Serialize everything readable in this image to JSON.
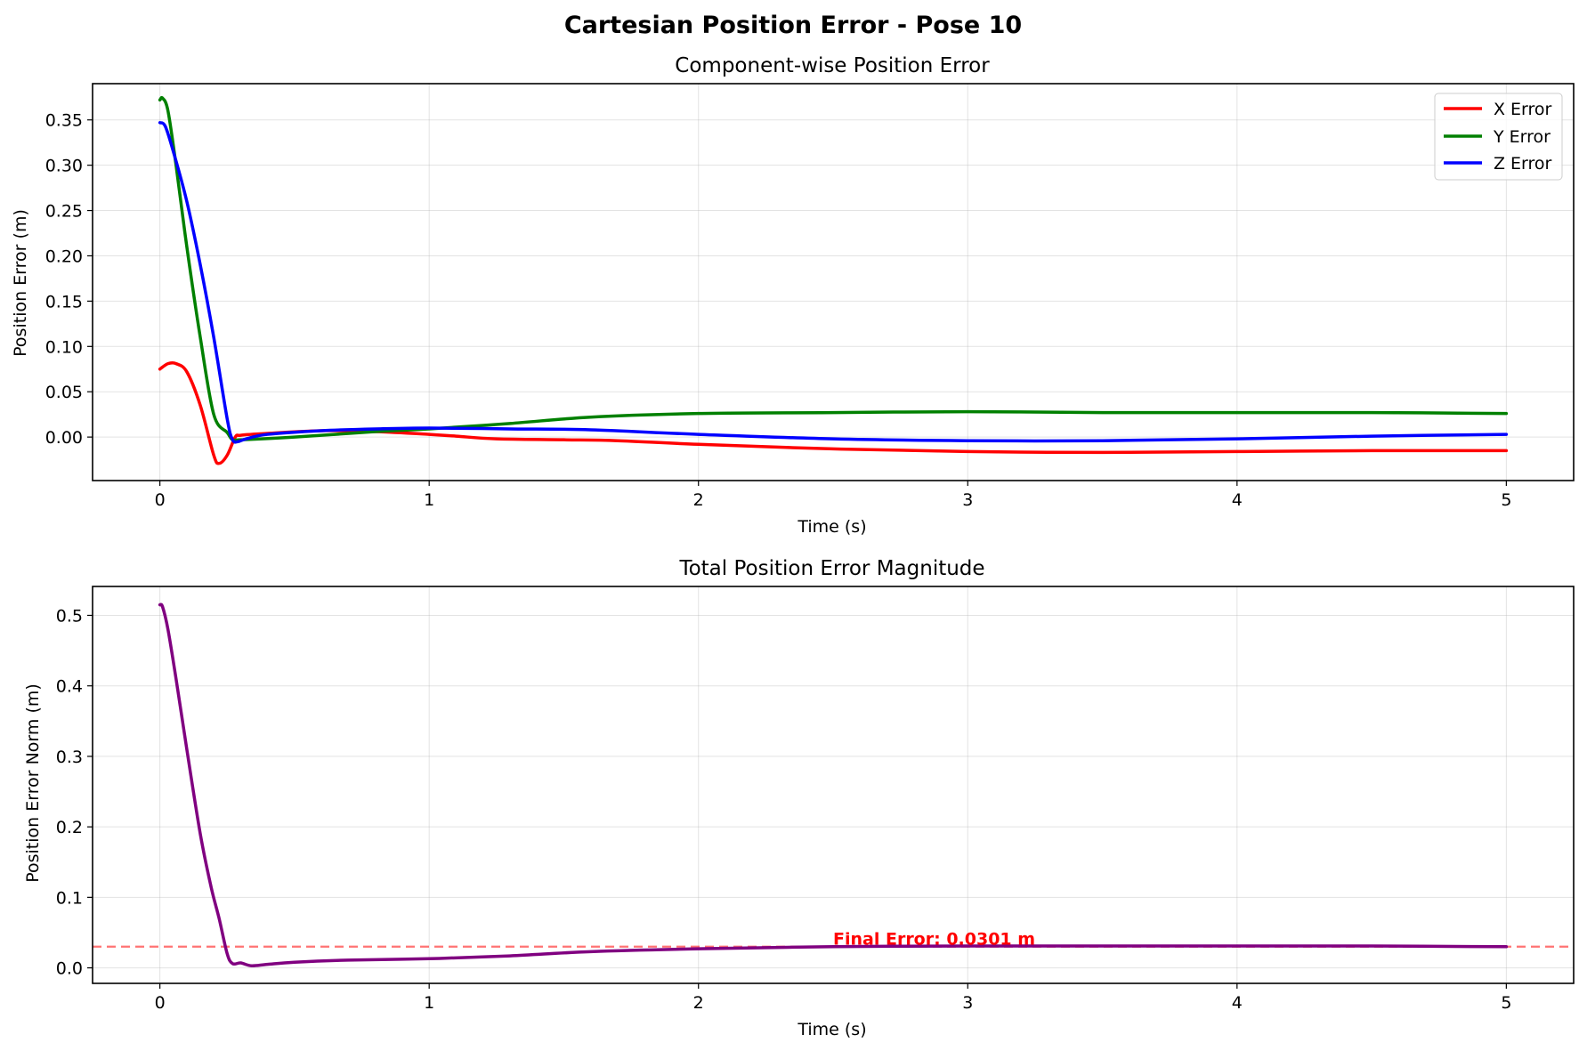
{
  "figure": {
    "suptitle": "Cartesian Position Error - Pose 10"
  },
  "chart_data": [
    {
      "type": "line",
      "title": "Component-wise Position Error",
      "xlabel": "Time (s)",
      "ylabel": "Position Error (m)",
      "xlim": [
        -0.25,
        5.25
      ],
      "ylim": [
        -0.048,
        0.39
      ],
      "xticks": [
        "0",
        "1",
        "2",
        "3",
        "4",
        "5"
      ],
      "yticks": [
        "0.00",
        "0.05",
        "0.10",
        "0.15",
        "0.20",
        "0.25",
        "0.30",
        "0.35"
      ],
      "grid": true,
      "legend_position": "top-right",
      "series": [
        {
          "name": "X Error",
          "color": "#ff0000",
          "x": [
            0,
            0.03,
            0.06,
            0.1,
            0.15,
            0.2,
            0.22,
            0.25,
            0.28,
            0.3,
            0.4,
            0.6,
            0.8,
            1.0,
            1.1,
            1.25,
            1.5,
            1.7,
            2.0,
            2.5,
            3.0,
            3.5,
            4.0,
            4.5,
            5.0
          ],
          "y": [
            0.075,
            0.081,
            0.081,
            0.072,
            0.035,
            -0.02,
            -0.029,
            -0.02,
            0.0,
            0.002,
            0.004,
            0.007,
            0.006,
            0.003,
            0.001,
            -0.002,
            -0.003,
            -0.004,
            -0.008,
            -0.013,
            -0.016,
            -0.017,
            -0.016,
            -0.015,
            -0.015
          ]
        },
        {
          "name": "Y Error",
          "color": "#008000",
          "x": [
            0,
            0.01,
            0.03,
            0.06,
            0.1,
            0.15,
            0.2,
            0.25,
            0.27,
            0.3,
            0.5,
            0.8,
            1.0,
            1.3,
            1.6,
            2.0,
            2.5,
            3.0,
            3.5,
            4.0,
            4.5,
            5.0
          ],
          "y": [
            0.372,
            0.374,
            0.36,
            0.3,
            0.21,
            0.11,
            0.025,
            0.005,
            -0.003,
            -0.003,
            0.0,
            0.006,
            0.009,
            0.015,
            0.022,
            0.026,
            0.027,
            0.028,
            0.027,
            0.027,
            0.027,
            0.026
          ]
        },
        {
          "name": "Z Error",
          "color": "#0000ff",
          "x": [
            0,
            0.02,
            0.05,
            0.1,
            0.15,
            0.2,
            0.25,
            0.27,
            0.29,
            0.32,
            0.4,
            0.6,
            0.8,
            1.0,
            1.3,
            1.6,
            2.0,
            2.5,
            3.0,
            3.5,
            4.0,
            4.5,
            5.0
          ],
          "y": [
            0.347,
            0.343,
            0.315,
            0.26,
            0.19,
            0.11,
            0.02,
            -0.003,
            -0.005,
            -0.002,
            0.003,
            0.007,
            0.009,
            0.01,
            0.009,
            0.008,
            0.003,
            -0.002,
            -0.004,
            -0.004,
            -0.002,
            0.001,
            0.003
          ]
        }
      ]
    },
    {
      "type": "line",
      "title": "Total Position Error Magnitude",
      "xlabel": "Time (s)",
      "ylabel": "Position Error Norm (m)",
      "xlim": [
        -0.25,
        5.25
      ],
      "ylim": [
        -0.022,
        0.541
      ],
      "xticks": [
        "0",
        "1",
        "2",
        "3",
        "4",
        "5"
      ],
      "yticks": [
        "0.0",
        "0.1",
        "0.2",
        "0.3",
        "0.4",
        "0.5"
      ],
      "grid": true,
      "series": [
        {
          "color": "#800080",
          "x": [
            0,
            0.01,
            0.03,
            0.06,
            0.1,
            0.15,
            0.19,
            0.22,
            0.25,
            0.27,
            0.3,
            0.34,
            0.4,
            0.5,
            0.7,
            1.0,
            1.3,
            1.6,
            2.0,
            2.5,
            3.0,
            3.5,
            4.0,
            4.5,
            5.0
          ],
          "y": [
            0.515,
            0.512,
            0.48,
            0.41,
            0.31,
            0.19,
            0.115,
            0.07,
            0.02,
            0.006,
            0.007,
            0.003,
            0.005,
            0.008,
            0.011,
            0.013,
            0.017,
            0.023,
            0.027,
            0.03,
            0.031,
            0.031,
            0.031,
            0.031,
            0.03
          ]
        }
      ],
      "reference_line": {
        "y": 0.0301,
        "color": "#ff0000",
        "style": "dashed"
      },
      "annotation": {
        "text": "Final Error: 0.0301 m",
        "x": 2.5,
        "y": 0.033,
        "color": "#ff0000"
      }
    }
  ]
}
